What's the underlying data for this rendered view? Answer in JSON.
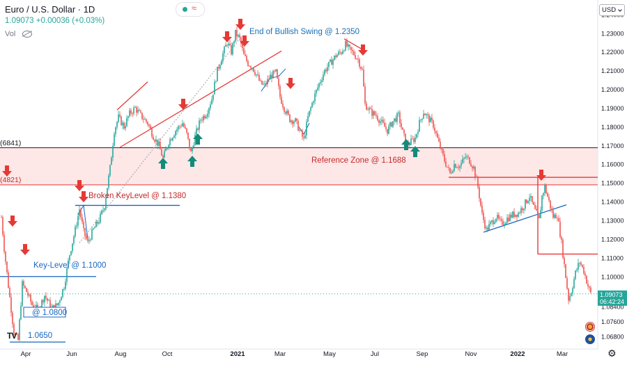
{
  "header": {
    "title": "Euro / U.S. Dollar · 1D",
    "change": "1.09073 +0.00036 (+0.03%)",
    "vol": "Vol"
  },
  "currency_selector": "USD",
  "colors": {
    "up": "#26a69a",
    "down": "#ef5350",
    "red_line": "#e53935",
    "blue_line": "#1565c0",
    "zone_fill": "#fde4e4",
    "arrow_red": "#e53935",
    "arrow_green": "#138a7a",
    "annotation_blue": "#1a6fb5",
    "annotation_red": "#c62828"
  },
  "chart_data": {
    "type": "candlestick",
    "symbol": "Euro / U.S. Dollar",
    "interval": "1D",
    "x_ticks": [
      "Apr",
      "Jun",
      "Aug",
      "Oct",
      "2021",
      "Mar",
      "May",
      "Jul",
      "Sep",
      "Nov",
      "2022",
      "Mar"
    ],
    "y_ticks": [
      "1.24000",
      "1.23000",
      "1.22000",
      "1.21000",
      "1.20000",
      "1.19000",
      "1.18000",
      "1.17000",
      "1.16000",
      "1.15000",
      "1.14000",
      "1.13000",
      "1.12000",
      "1.11000",
      "1.10000",
      "1.09000",
      "1.08400",
      "1.07600",
      "1.06800"
    ],
    "ylim": [
      1.063,
      1.248
    ],
    "last_price": "1.09073",
    "countdown": "06:42:24",
    "left_labels": [
      "(6841)",
      "(4821)"
    ],
    "price_path": [
      [
        0,
        1.14
      ],
      [
        6,
        1.115
      ],
      [
        12,
        1.095
      ],
      [
        20,
        1.07
      ],
      [
        26,
        1.066
      ],
      [
        32,
        1.096
      ],
      [
        38,
        1.092
      ],
      [
        46,
        1.085
      ],
      [
        55,
        1.082
      ],
      [
        64,
        1.09
      ],
      [
        74,
        1.083
      ],
      [
        83,
        1.085
      ],
      [
        92,
        1.095
      ],
      [
        100,
        1.112
      ],
      [
        108,
        1.125
      ],
      [
        114,
        1.136
      ],
      [
        120,
        1.124
      ],
      [
        126,
        1.118
      ],
      [
        134,
        1.125
      ],
      [
        142,
        1.13
      ],
      [
        150,
        1.138
      ],
      [
        158,
        1.158
      ],
      [
        164,
        1.178
      ],
      [
        170,
        1.185
      ],
      [
        178,
        1.18
      ],
      [
        186,
        1.187
      ],
      [
        194,
        1.19
      ],
      [
        202,
        1.186
      ],
      [
        212,
        1.182
      ],
      [
        220,
        1.175
      ],
      [
        228,
        1.17
      ],
      [
        234,
        1.163
      ],
      [
        242,
        1.172
      ],
      [
        252,
        1.178
      ],
      [
        262,
        1.182
      ],
      [
        268,
        1.176
      ],
      [
        274,
        1.166
      ],
      [
        280,
        1.175
      ],
      [
        288,
        1.184
      ],
      [
        296,
        1.187
      ],
      [
        304,
        1.195
      ],
      [
        312,
        1.21
      ],
      [
        320,
        1.219
      ],
      [
        326,
        1.225
      ],
      [
        332,
        1.22
      ],
      [
        338,
        1.23
      ],
      [
        344,
        1.227
      ],
      [
        350,
        1.218
      ],
      [
        356,
        1.214
      ],
      [
        362,
        1.212
      ],
      [
        368,
        1.208
      ],
      [
        374,
        1.203
      ],
      [
        380,
        1.202
      ],
      [
        388,
        1.207
      ],
      [
        396,
        1.209
      ],
      [
        402,
        1.196
      ],
      [
        408,
        1.19
      ],
      [
        416,
        1.184
      ],
      [
        424,
        1.183
      ],
      [
        430,
        1.178
      ],
      [
        436,
        1.173
      ],
      [
        442,
        1.185
      ],
      [
        450,
        1.195
      ],
      [
        458,
        1.203
      ],
      [
        466,
        1.21
      ],
      [
        474,
        1.214
      ],
      [
        482,
        1.218
      ],
      [
        490,
        1.22
      ],
      [
        496,
        1.224
      ],
      [
        502,
        1.221
      ],
      [
        508,
        1.219
      ],
      [
        514,
        1.216
      ],
      [
        520,
        1.21
      ],
      [
        524,
        1.192
      ],
      [
        532,
        1.188
      ],
      [
        540,
        1.186
      ],
      [
        548,
        1.182
      ],
      [
        556,
        1.178
      ],
      [
        564,
        1.183
      ],
      [
        572,
        1.186
      ],
      [
        578,
        1.177
      ],
      [
        584,
        1.17
      ],
      [
        590,
        1.172
      ],
      [
        596,
        1.174
      ],
      [
        602,
        1.182
      ],
      [
        608,
        1.188
      ],
      [
        614,
        1.185
      ],
      [
        622,
        1.181
      ],
      [
        630,
        1.171
      ],
      [
        638,
        1.162
      ],
      [
        646,
        1.155
      ],
      [
        652,
        1.16
      ],
      [
        660,
        1.159
      ],
      [
        668,
        1.164
      ],
      [
        674,
        1.162
      ],
      [
        680,
        1.158
      ],
      [
        686,
        1.148
      ],
      [
        692,
        1.133
      ],
      [
        698,
        1.125
      ],
      [
        704,
        1.128
      ],
      [
        712,
        1.132
      ],
      [
        720,
        1.128
      ],
      [
        728,
        1.131
      ],
      [
        736,
        1.133
      ],
      [
        744,
        1.134
      ],
      [
        752,
        1.138
      ],
      [
        760,
        1.143
      ],
      [
        768,
        1.135
      ],
      [
        774,
        1.13
      ],
      [
        778,
        1.143
      ],
      [
        782,
        1.148
      ],
      [
        788,
        1.14
      ],
      [
        794,
        1.132
      ],
      [
        800,
        1.133
      ],
      [
        806,
        1.118
      ],
      [
        812,
        1.1
      ],
      [
        816,
        1.088
      ],
      [
        820,
        1.092
      ],
      [
        826,
        1.102
      ],
      [
        832,
        1.108
      ],
      [
        838,
        1.103
      ],
      [
        844,
        1.095
      ],
      [
        848,
        1.091
      ]
    ],
    "lines": {
      "resistance_black": 1.1688,
      "reference_zone": [
        1.149,
        1.1688
      ],
      "key_level": 1.1,
      "broken_key_level": 1.138,
      "low_1080": 1.08,
      "low_1065": 1.065,
      "red_short_2022": 1.153,
      "red_short_mar": 1.112,
      "dotted_last": 1.0907
    },
    "annotations": {
      "end_swing": "End of Bullish Swing @ 1.2350",
      "reference_zone": "Reference Zone @ 1.1688",
      "broken_key": "Broken KeyLevel @ 1.1380",
      "key_level": "Key-Level @ 1.1000",
      "low_1080": "@ 1.0800",
      "low_1065": "1.0650"
    }
  }
}
